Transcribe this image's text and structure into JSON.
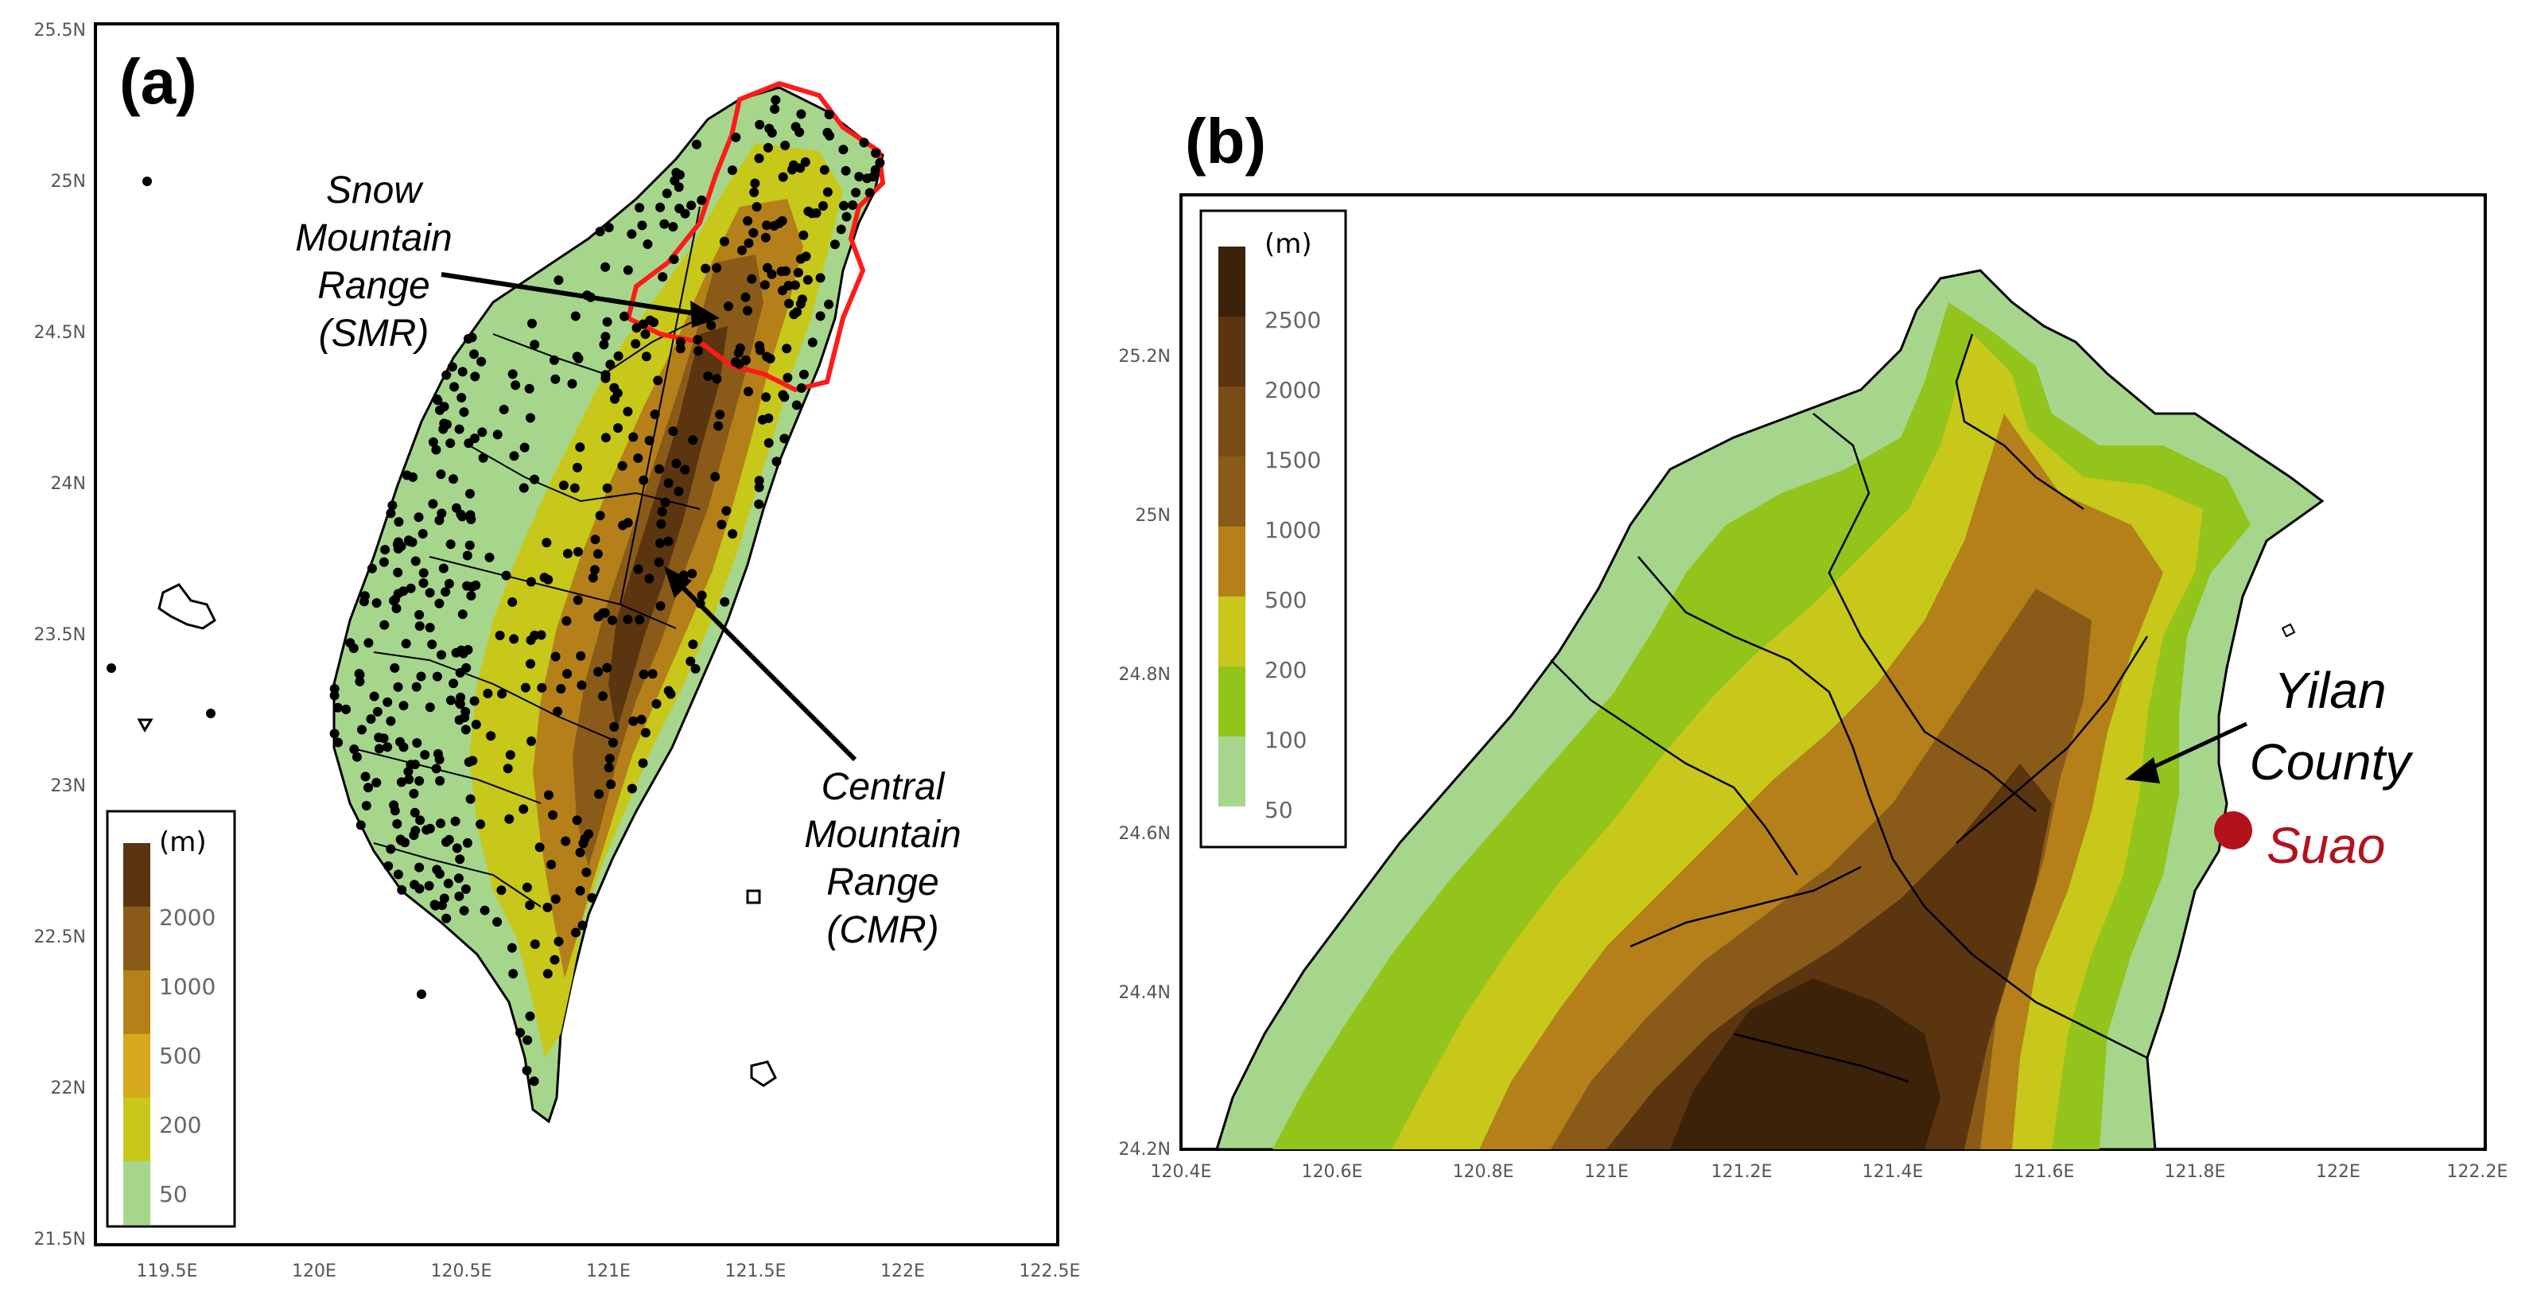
{
  "panels": {
    "a": {
      "label": "(a)",
      "x_ticks": [
        "119.5E",
        "120E",
        "120.5E",
        "121E",
        "121.5E",
        "122E",
        "122.5E"
      ],
      "y_ticks": [
        "25.5N",
        "25N",
        "24.5N",
        "24N",
        "23.5N",
        "23N",
        "22.5N",
        "22N",
        "21.5N"
      ],
      "legend": {
        "unit": "(m)",
        "levels": [
          "2000",
          "1000",
          "500",
          "200",
          "50"
        ],
        "colors": [
          "#5a3510",
          "#8a5a18",
          "#b5801a",
          "#d6a81c",
          "#c7c81a",
          "#a6d68c"
        ]
      },
      "annotations": {
        "smr": [
          "Snow",
          "Mountain",
          "Range",
          "(SMR)"
        ],
        "cmr": [
          "Central",
          "Mountain",
          "Range",
          "(CMR)"
        ]
      }
    },
    "b": {
      "label": "(b)",
      "x_ticks": [
        "120.4E",
        "120.6E",
        "120.8E",
        "121E",
        "121.2E",
        "121.4E",
        "121.6E",
        "121.8E",
        "122E",
        "122.2E"
      ],
      "y_ticks": [
        "25.2N",
        "25N",
        "24.8N",
        "24.6N",
        "24.4N",
        "24.2N"
      ],
      "legend": {
        "unit": "(m)",
        "levels": [
          "2500",
          "2000",
          "1500",
          "1000",
          "500",
          "200",
          "100",
          "50"
        ],
        "colors": [
          "#3b2208",
          "#5a3510",
          "#7a4c15",
          "#8a5a18",
          "#b5801a",
          "#c7c81a",
          "#93c41c",
          "#a6d68c"
        ]
      },
      "annotations": {
        "yilan": [
          "Yilan",
          "County"
        ],
        "suao": "Suao",
        "suao_color": "#b3121d"
      }
    }
  }
}
